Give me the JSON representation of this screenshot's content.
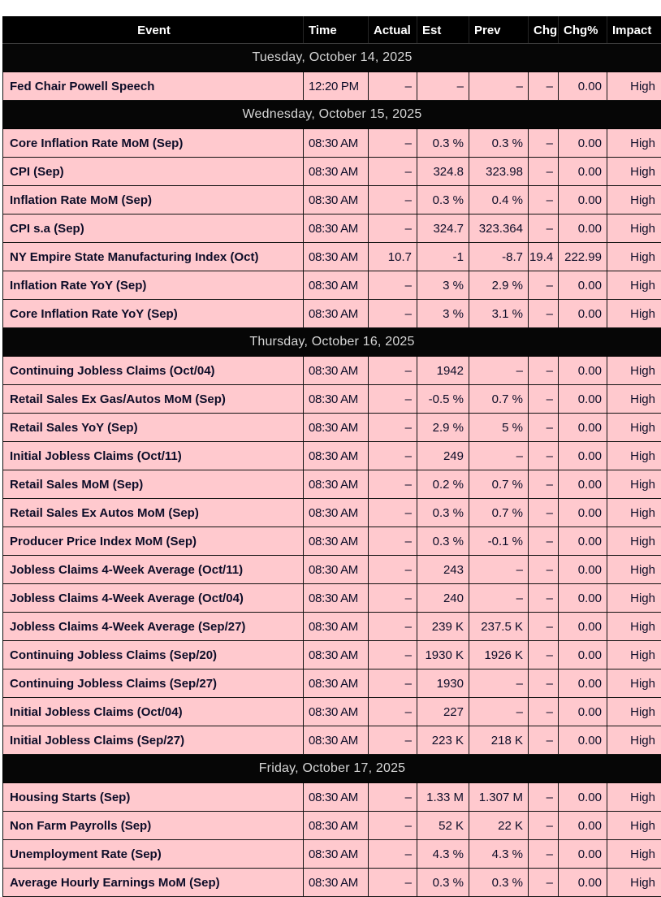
{
  "table": {
    "columns": [
      {
        "key": "event",
        "label": "Event"
      },
      {
        "key": "time",
        "label": "Time"
      },
      {
        "key": "actual",
        "label": "Actual"
      },
      {
        "key": "est",
        "label": "Est"
      },
      {
        "key": "prev",
        "label": "Prev"
      },
      {
        "key": "chg",
        "label": "Chg"
      },
      {
        "key": "chgpct",
        "label": "Chg%"
      },
      {
        "key": "impact",
        "label": "Impact"
      }
    ],
    "sections": [
      {
        "date": "Tuesday, October 14, 2025",
        "rows": [
          {
            "cells": [
              "Fed Chair Powell Speech",
              "12:20 PM",
              "–",
              "–",
              "–",
              "–",
              "0.00",
              "High"
            ]
          }
        ]
      },
      {
        "date": "Wednesday, October 15, 2025",
        "rows": [
          {
            "cells": [
              "Core Inflation Rate MoM (Sep)",
              "08:30 AM",
              "–",
              "0.3 %",
              "0.3 %",
              "–",
              "0.00",
              "High"
            ]
          },
          {
            "cells": [
              "CPI (Sep)",
              "08:30 AM",
              "–",
              "324.8",
              "323.98",
              "–",
              "0.00",
              "High"
            ]
          },
          {
            "cells": [
              "Inflation Rate MoM (Sep)",
              "08:30 AM",
              "–",
              "0.3 %",
              "0.4 %",
              "–",
              "0.00",
              "High"
            ]
          },
          {
            "cells": [
              "CPI s.a (Sep)",
              "08:30 AM",
              "–",
              "324.7",
              "323.364",
              "–",
              "0.00",
              "High"
            ]
          },
          {
            "cells": [
              "NY Empire State Manufacturing Index (Oct)",
              "08:30 AM",
              "10.7",
              "-1",
              "-8.7",
              "19.4",
              "222.99",
              "High"
            ]
          },
          {
            "cells": [
              "Inflation Rate YoY (Sep)",
              "08:30 AM",
              "–",
              "3 %",
              "2.9 %",
              "–",
              "0.00",
              "High"
            ]
          },
          {
            "cells": [
              "Core Inflation Rate YoY (Sep)",
              "08:30 AM",
              "–",
              "3 %",
              "3.1 %",
              "–",
              "0.00",
              "High"
            ]
          }
        ]
      },
      {
        "date": "Thursday, October 16, 2025",
        "rows": [
          {
            "cells": [
              "Continuing Jobless Claims (Oct/04)",
              "08:30 AM",
              "–",
              "1942",
              "–",
              "–",
              "0.00",
              "High"
            ]
          },
          {
            "cells": [
              "Retail Sales Ex Gas/Autos MoM (Sep)",
              "08:30 AM",
              "–",
              "-0.5 %",
              "0.7 %",
              "–",
              "0.00",
              "High"
            ]
          },
          {
            "cells": [
              "Retail Sales YoY (Sep)",
              "08:30 AM",
              "–",
              "2.9 %",
              "5 %",
              "–",
              "0.00",
              "High"
            ]
          },
          {
            "cells": [
              "Initial Jobless Claims (Oct/11)",
              "08:30 AM",
              "–",
              "249",
              "–",
              "–",
              "0.00",
              "High"
            ]
          },
          {
            "cells": [
              "Retail Sales MoM (Sep)",
              "08:30 AM",
              "–",
              "0.2 %",
              "0.7 %",
              "–",
              "0.00",
              "High"
            ]
          },
          {
            "cells": [
              "Retail Sales Ex Autos MoM (Sep)",
              "08:30 AM",
              "–",
              "0.3 %",
              "0.7 %",
              "–",
              "0.00",
              "High"
            ]
          },
          {
            "cells": [
              "Producer Price Index MoM (Sep)",
              "08:30 AM",
              "–",
              "0.3 %",
              "-0.1 %",
              "–",
              "0.00",
              "High"
            ]
          },
          {
            "cells": [
              "Jobless Claims 4-Week Average (Oct/11)",
              "08:30 AM",
              "–",
              "243",
              "–",
              "–",
              "0.00",
              "High"
            ]
          },
          {
            "cells": [
              "Jobless Claims 4-Week Average (Oct/04)",
              "08:30 AM",
              "–",
              "240",
              "–",
              "–",
              "0.00",
              "High"
            ]
          },
          {
            "cells": [
              "Jobless Claims 4-Week Average (Sep/27)",
              "08:30 AM",
              "–",
              "239 K",
              "237.5 K",
              "–",
              "0.00",
              "High"
            ]
          },
          {
            "cells": [
              "Continuing Jobless Claims (Sep/20)",
              "08:30 AM",
              "–",
              "1930 K",
              "1926 K",
              "–",
              "0.00",
              "High"
            ]
          },
          {
            "cells": [
              "Continuing Jobless Claims (Sep/27)",
              "08:30 AM",
              "–",
              "1930",
              "–",
              "–",
              "0.00",
              "High"
            ]
          },
          {
            "cells": [
              "Initial Jobless Claims (Oct/04)",
              "08:30 AM",
              "–",
              "227",
              "–",
              "–",
              "0.00",
              "High"
            ]
          },
          {
            "cells": [
              "Initial Jobless Claims (Sep/27)",
              "08:30 AM",
              "–",
              "223 K",
              "218 K",
              "–",
              "0.00",
              "High"
            ]
          }
        ]
      },
      {
        "date": "Friday, October 17, 2025",
        "rows": [
          {
            "cells": [
              "Housing Starts (Sep)",
              "08:30 AM",
              "–",
              "1.33 M",
              "1.307 M",
              "–",
              "0.00",
              "High"
            ]
          },
          {
            "cells": [
              "Non Farm Payrolls (Sep)",
              "08:30 AM",
              "–",
              "52 K",
              "22 K",
              "–",
              "0.00",
              "High"
            ]
          },
          {
            "cells": [
              "Unemployment Rate (Sep)",
              "08:30 AM",
              "–",
              "4.3 %",
              "4.3 %",
              "–",
              "0.00",
              "High"
            ]
          },
          {
            "cells": [
              "Average Hourly Earnings MoM (Sep)",
              "08:30 AM",
              "–",
              "0.3 %",
              "0.3 %",
              "–",
              "0.00",
              "High"
            ]
          }
        ]
      }
    ]
  },
  "colors": {
    "row_pink": "#ffc9ce",
    "header_bg": "#000000",
    "header_text": "#ffffff",
    "date_row_bg": "#060606",
    "date_row_text": "#d6d6d6",
    "cell_text": "#0d0d28",
    "grid_line": "#121212"
  }
}
